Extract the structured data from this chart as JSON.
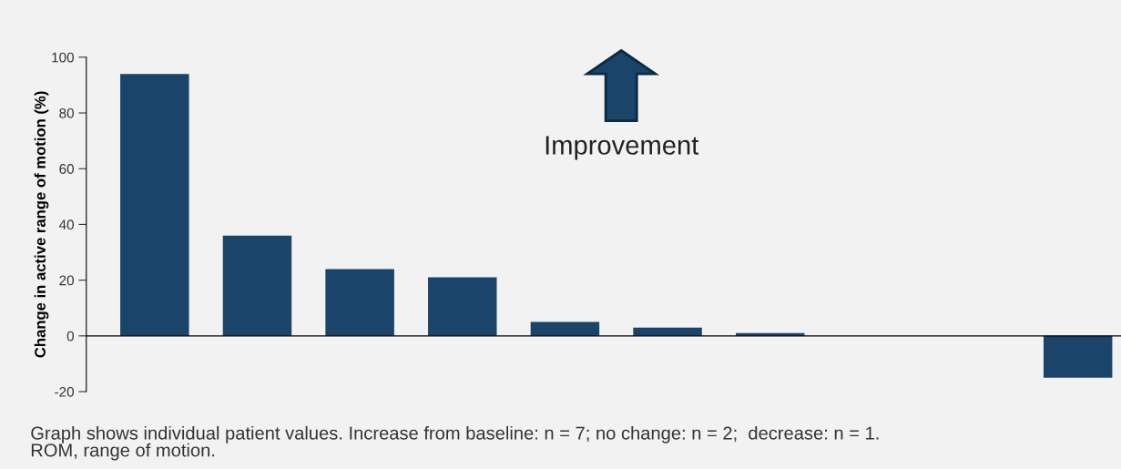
{
  "chart_data": {
    "type": "bar",
    "ylabel": "Change in active range of motion (%)",
    "categories": [
      null,
      null,
      null,
      null,
      null,
      null,
      null,
      null,
      null,
      null
    ],
    "values": [
      94,
      36,
      24,
      21,
      5,
      3,
      1,
      0,
      0,
      -15
    ],
    "color": "#1a4469",
    "ylim": [
      -20,
      100
    ],
    "yticks": [
      -20,
      0,
      20,
      40,
      60,
      80,
      100
    ],
    "annotations": [
      "Improvement",
      "Graph shows individual patient values. Increase from baseline: n = 7; no change: n = 2;  decrease: n = 1.\nROM, range of motion."
    ]
  }
}
